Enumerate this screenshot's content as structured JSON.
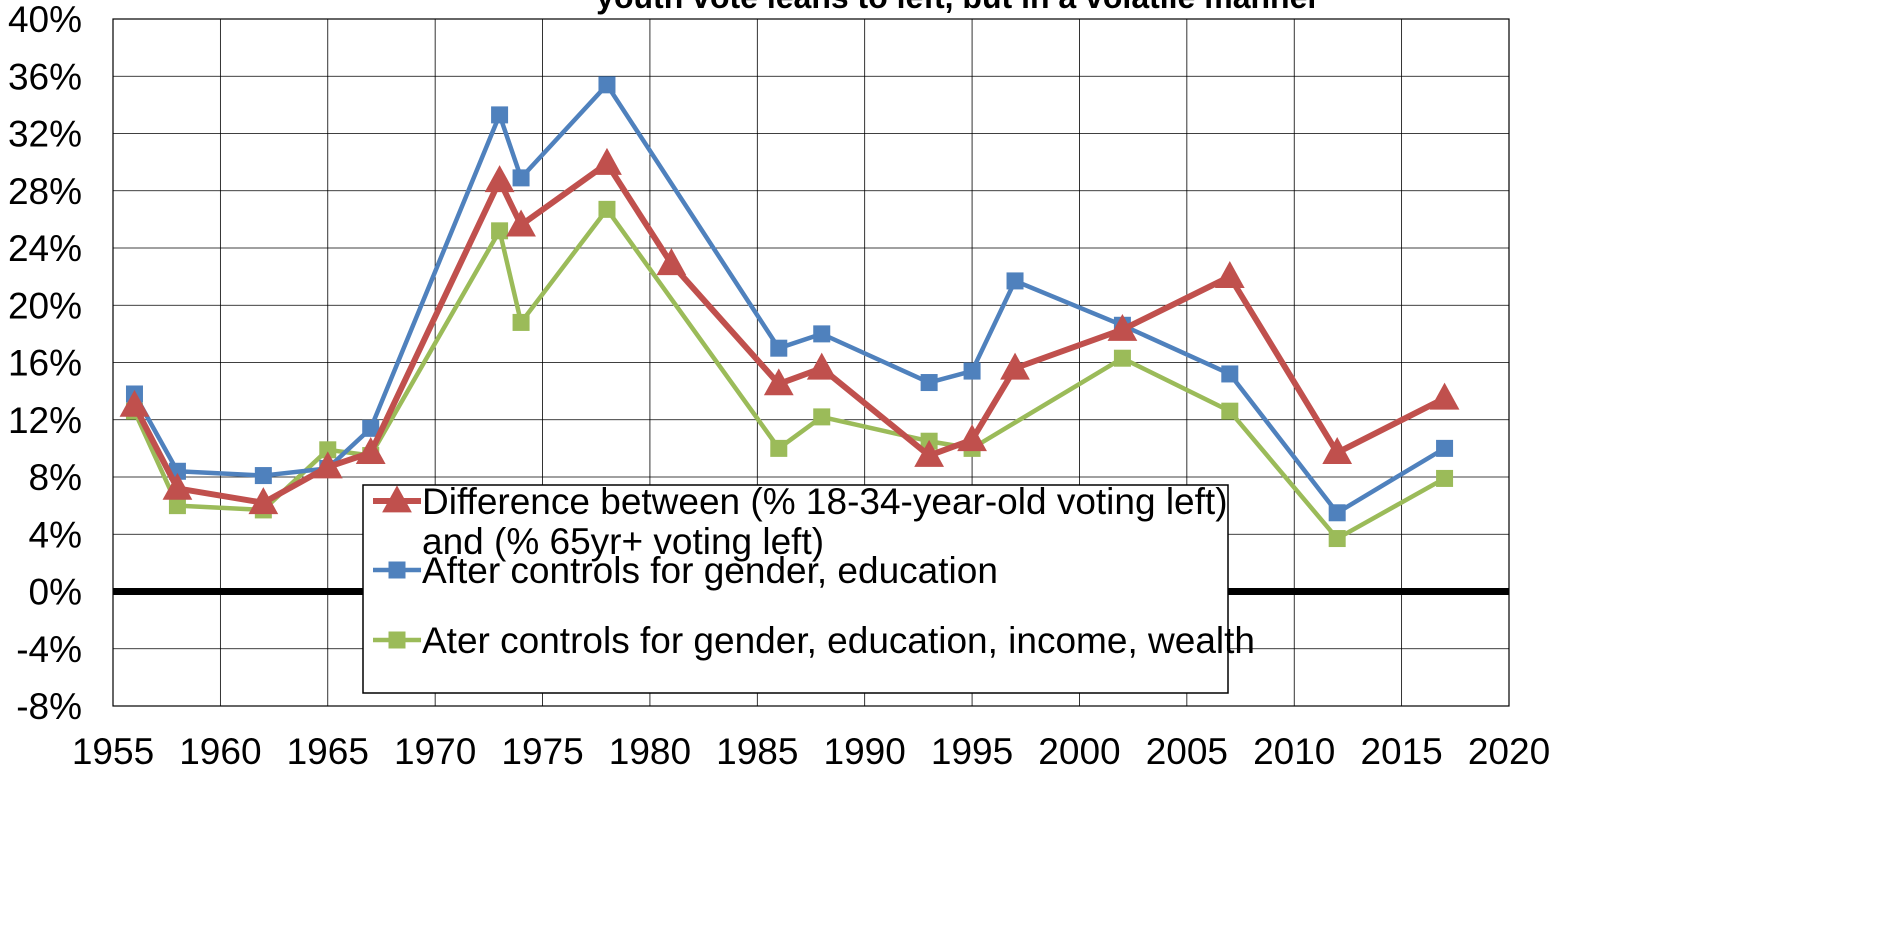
{
  "chart_data": {
    "type": "line",
    "title": "youth vote leans to left, but in a volatile manner",
    "xlabel": "",
    "ylabel": "",
    "xlim": [
      1955,
      2020
    ],
    "ylim": [
      -8,
      40
    ],
    "x_ticks": [
      1955,
      1960,
      1965,
      1970,
      1975,
      1980,
      1985,
      1990,
      1995,
      2000,
      2005,
      2010,
      2015,
      2020
    ],
    "y_ticks": [
      -8,
      -4,
      0,
      4,
      8,
      12,
      16,
      20,
      24,
      28,
      32,
      36,
      40
    ],
    "y_tick_labels": [
      "-8%",
      "-4%",
      "0%",
      "4%",
      "8%",
      "12%",
      "16%",
      "20%",
      "24%",
      "28%",
      "32%",
      "36%",
      "40%"
    ],
    "grid": true,
    "legend_position": "bottom-center",
    "zero_line": true,
    "series": [
      {
        "name": "Difference between (% 18-34-year-old voting left) and (% 65yr+ voting left)",
        "legend_lines": [
          "Difference between (% 18-34-year-old voting left)",
          "and (% 65yr+ voting left)"
        ],
        "color": "#C0504D",
        "marker": "triangle",
        "x": [
          1956,
          1958,
          1962,
          1965,
          1967,
          1973,
          1974,
          1978,
          1981,
          1986,
          1988,
          1993,
          1995,
          1997,
          2002,
          2007,
          2012,
          2017
        ],
        "values": [
          13.0,
          7.2,
          6.2,
          8.7,
          9.7,
          28.7,
          25.6,
          29.9,
          22.9,
          14.5,
          15.6,
          9.5,
          10.6,
          15.6,
          18.3,
          22.0,
          9.7,
          13.5
        ]
      },
      {
        "name": "After controls for gender, education",
        "legend_lines": [
          "After controls for gender, education"
        ],
        "color": "#4F81BD",
        "marker": "square",
        "x": [
          1956,
          1958,
          1962,
          1965,
          1967,
          1973,
          1974,
          1978,
          1986,
          1988,
          1993,
          1995,
          1997,
          2002,
          2007,
          2012,
          2017
        ],
        "values": [
          13.8,
          8.4,
          8.1,
          8.6,
          11.4,
          33.3,
          28.9,
          35.4,
          17.0,
          18.0,
          14.6,
          15.4,
          21.7,
          18.6,
          15.2,
          5.5,
          10.0
        ]
      },
      {
        "name": "Ater controls for gender, education, income, wealth",
        "legend_lines": [
          "Ater controls for gender, education, income, wealth"
        ],
        "color": "#9BBB59",
        "marker": "square",
        "x": [
          1956,
          1958,
          1962,
          1965,
          1967,
          1973,
          1974,
          1978,
          1986,
          1988,
          1993,
          1995,
          2002,
          2007,
          2012,
          2017
        ],
        "values": [
          12.6,
          6.0,
          5.7,
          9.9,
          9.5,
          25.2,
          18.8,
          26.7,
          10.0,
          12.2,
          10.5,
          10.0,
          16.3,
          12.6,
          3.7,
          7.9
        ]
      }
    ]
  }
}
